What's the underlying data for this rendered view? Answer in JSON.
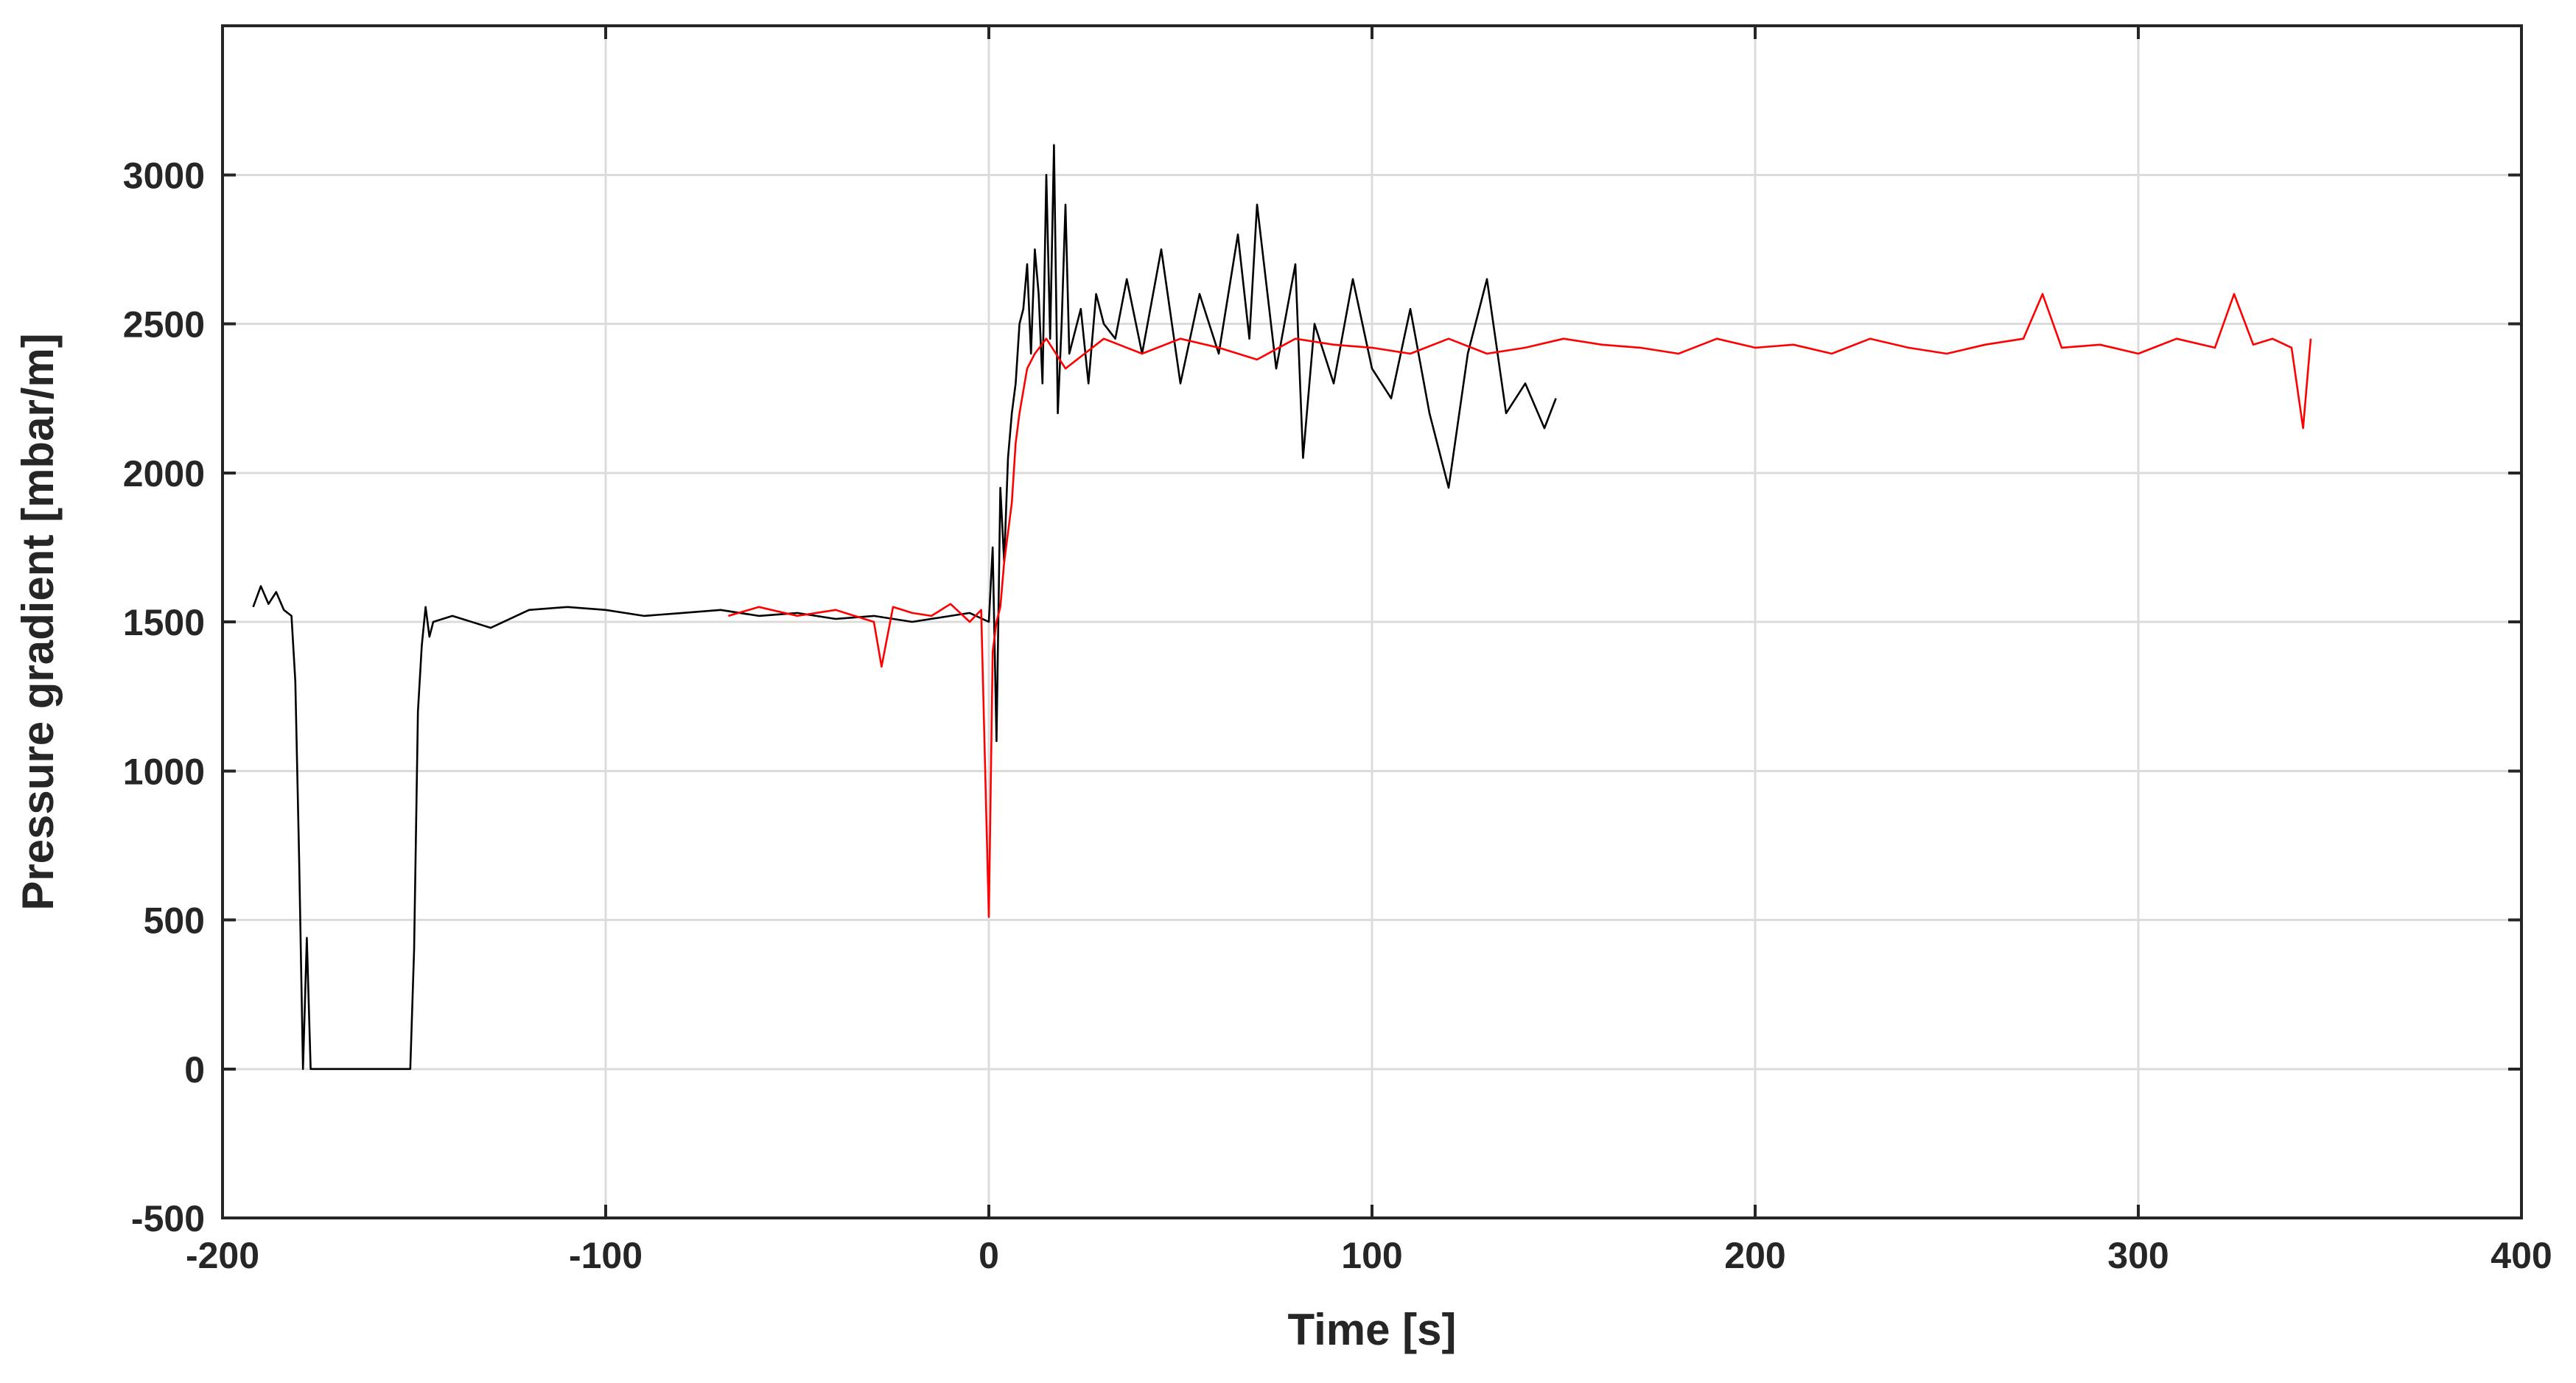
{
  "chart_data": {
    "type": "line",
    "title": "",
    "xlabel": "Time [s]",
    "ylabel": "Pressure gradient [mbar/m]",
    "xlim": [
      -200,
      400
    ],
    "ylim": [
      -500,
      3500
    ],
    "xticks": [
      -200,
      -100,
      0,
      100,
      200,
      300,
      400
    ],
    "yticks": [
      -500,
      0,
      500,
      1000,
      1500,
      2000,
      2500,
      3000
    ],
    "grid": true,
    "legend": "none",
    "series": [
      {
        "color": "#000000",
        "x": [
          -192,
          -190,
          -188,
          -186,
          -184,
          -182,
          -181,
          -180,
          -179,
          -178,
          -177,
          -176,
          -175,
          -170,
          -160,
          -155,
          -151,
          -150,
          -149,
          -148,
          -147,
          -146,
          -145,
          -140,
          -130,
          -120,
          -110,
          -100,
          -90,
          -80,
          -70,
          -60,
          -50,
          -40,
          -30,
          -20,
          -10,
          -5,
          0,
          1,
          2,
          3,
          4,
          5,
          6,
          7,
          8,
          9,
          10,
          11,
          12,
          13,
          14,
          15,
          16,
          17,
          18,
          19,
          20,
          21,
          22,
          24,
          26,
          28,
          30,
          33,
          36,
          40,
          45,
          50,
          55,
          60,
          65,
          68,
          70,
          75,
          80,
          82,
          85,
          90,
          95,
          100,
          105,
          110,
          115,
          116,
          120,
          125,
          130,
          135,
          140,
          145,
          148
        ],
        "y": [
          1550,
          1620,
          1560,
          1600,
          1540,
          1520,
          1300,
          700,
          0,
          440,
          0,
          0,
          0,
          0,
          0,
          0,
          0,
          400,
          1200,
          1420,
          1550,
          1450,
          1500,
          1520,
          1480,
          1540,
          1550,
          1540,
          1520,
          1530,
          1540,
          1520,
          1530,
          1510,
          1520,
          1500,
          1520,
          1530,
          1500,
          1750,
          1100,
          1950,
          1700,
          2050,
          2200,
          2300,
          2500,
          2550,
          2700,
          2400,
          2750,
          2600,
          2300,
          3000,
          2450,
          3100,
          2200,
          2500,
          2900,
          2400,
          2450,
          2550,
          2300,
          2600,
          2500,
          2450,
          2650,
          2400,
          2750,
          2300,
          2600,
          2400,
          2800,
          2450,
          2900,
          2350,
          2700,
          2050,
          2500,
          2300,
          2650,
          2350,
          2250,
          2550,
          2200,
          2150,
          1950,
          2400,
          2650,
          2200,
          2300,
          2150,
          2250
        ]
      },
      {
        "color": "#ff0000",
        "x": [
          -68,
          -60,
          -50,
          -40,
          -30,
          -28,
          -25,
          -20,
          -15,
          -10,
          -5,
          -2,
          0,
          1,
          2,
          3,
          4,
          5,
          6,
          7,
          8,
          10,
          12,
          15,
          20,
          25,
          30,
          40,
          50,
          60,
          70,
          80,
          90,
          100,
          110,
          120,
          130,
          140,
          150,
          160,
          170,
          180,
          190,
          200,
          210,
          220,
          230,
          240,
          250,
          260,
          270,
          275,
          280,
          290,
          300,
          310,
          320,
          325,
          330,
          335,
          340,
          343,
          345
        ],
        "y": [
          1520,
          1550,
          1520,
          1540,
          1500,
          1350,
          1550,
          1530,
          1520,
          1560,
          1500,
          1540,
          510,
          1400,
          1500,
          1550,
          1700,
          1800,
          1900,
          2100,
          2200,
          2350,
          2400,
          2450,
          2350,
          2400,
          2450,
          2400,
          2450,
          2420,
          2380,
          2450,
          2430,
          2420,
          2400,
          2450,
          2400,
          2420,
          2450,
          2430,
          2420,
          2400,
          2450,
          2420,
          2430,
          2400,
          2450,
          2420,
          2400,
          2430,
          2450,
          2600,
          2420,
          2430,
          2400,
          2450,
          2420,
          2600,
          2430,
          2450,
          2420,
          2150,
          2450
        ]
      }
    ]
  }
}
